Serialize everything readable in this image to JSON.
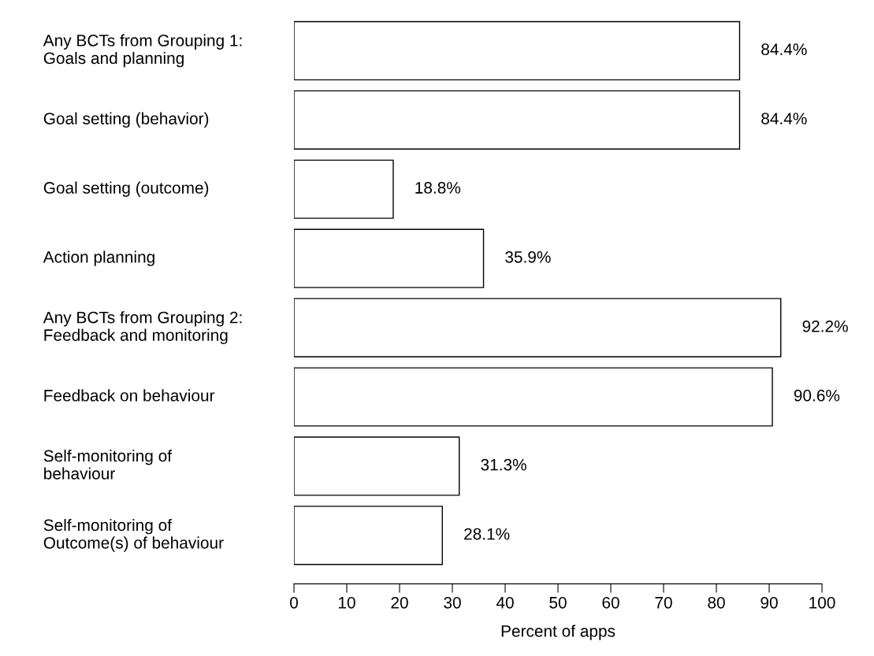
{
  "chart_data": {
    "type": "bar",
    "orientation": "horizontal",
    "xlabel": "Percent of apps",
    "categories": [
      "Any BCTs from Grouping 1:\nGoals and planning",
      "Goal setting (behavior)",
      "Goal setting (outcome)",
      "Action planning",
      "Any BCTs from Grouping 2:\nFeedback and monitoring",
      "Feedback on behaviour",
      "Self-monitoring of\nbehaviour",
      "Self-monitoring of\nOutcome(s) of behaviour"
    ],
    "values": [
      84.4,
      84.4,
      18.8,
      35.9,
      92.2,
      90.6,
      31.3,
      28.1
    ],
    "value_labels": [
      "84.4%",
      "84.4%",
      "18.8%",
      "35.9%",
      "92.2%",
      "90.6%",
      "31.3%",
      "28.1%"
    ],
    "color": "#ffffff",
    "xlim": [
      0,
      100
    ],
    "xticks": [
      0,
      10,
      20,
      30,
      40,
      50,
      60,
      70,
      80,
      90,
      100
    ],
    "grid": false,
    "legend": false
  }
}
